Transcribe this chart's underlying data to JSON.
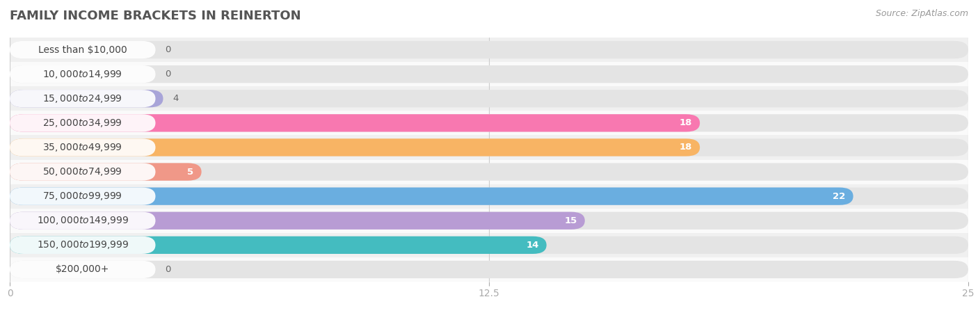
{
  "title": "FAMILY INCOME BRACKETS IN REINERTON",
  "source": "Source: ZipAtlas.com",
  "categories": [
    "Less than $10,000",
    "$10,000 to $14,999",
    "$15,000 to $24,999",
    "$25,000 to $34,999",
    "$35,000 to $49,999",
    "$50,000 to $74,999",
    "$75,000 to $99,999",
    "$100,000 to $149,999",
    "$150,000 to $199,999",
    "$200,000+"
  ],
  "values": [
    0,
    0,
    4,
    18,
    18,
    5,
    22,
    15,
    14,
    0
  ],
  "bar_colors": [
    "#c8b4d8",
    "#72c9bc",
    "#a8a4d8",
    "#f878b0",
    "#f8b464",
    "#f09888",
    "#6aaee0",
    "#b89cd4",
    "#44bcc0",
    "#b0bce8"
  ],
  "row_bg_colors": [
    "#f0f0f0",
    "#fafafa"
  ],
  "bar_bg_color": "#e4e4e4",
  "background_color": "#ffffff",
  "xlim": [
    0,
    25
  ],
  "xticks": [
    0,
    12.5,
    25
  ],
  "title_fontsize": 13,
  "label_fontsize": 10,
  "value_fontsize": 9.5,
  "source_fontsize": 9
}
